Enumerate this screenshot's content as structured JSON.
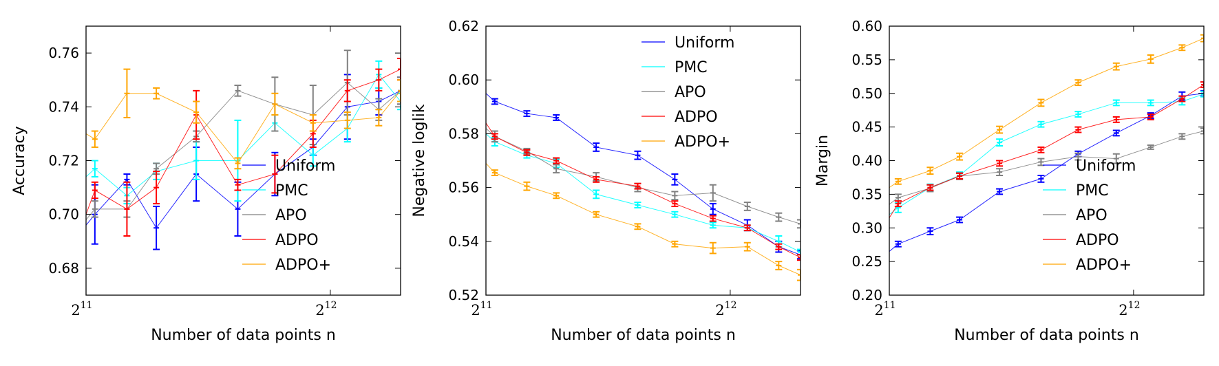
{
  "chart_data": [
    {
      "type": "line",
      "xlabel": "Number of data points n",
      "ylabel": "Accuracy",
      "xscale": "log2",
      "xlim": [
        2048,
        5000
      ],
      "ylim": [
        0.67,
        0.77
      ],
      "xticks": [
        {
          "value": 2048,
          "base": "2",
          "exp": "11"
        },
        {
          "value": 4096,
          "base": "2",
          "exp": "12"
        }
      ],
      "yticks": [
        0.68,
        0.7,
        0.72,
        0.74,
        0.76
      ],
      "ytick_labels": [
        "0.68",
        "0.70",
        "0.72",
        "0.74",
        "0.76"
      ],
      "legend_position": "lower-right",
      "x": [
        2048,
        2100,
        2300,
        2500,
        2800,
        3150,
        3500,
        3900,
        4300,
        4700,
        5000
      ],
      "series": [
        {
          "name": "Uniform",
          "color": "#0000ff",
          "values": [
            0.696,
            0.7,
            0.713,
            0.695,
            0.715,
            0.702,
            0.715,
            0.725,
            0.74,
            0.742,
            0.746
          ],
          "errors": [
            0.0,
            0.011,
            0.002,
            0.008,
            0.01,
            0.01,
            0.008,
            0.003,
            0.012,
            0.005,
            0.005
          ]
        },
        {
          "name": "PMC",
          "color": "#00ffff",
          "values": [
            0.714,
            0.717,
            0.707,
            0.716,
            0.72,
            0.72,
            0.734,
            0.722,
            0.732,
            0.752,
            0.742
          ],
          "errors": [
            0.0,
            0.003,
            0.003,
            0.003,
            0.007,
            0.015,
            0.003,
            0.004,
            0.005,
            0.005,
            0.003
          ]
        },
        {
          "name": "APO",
          "color": "#808080",
          "values": [
            0.698,
            0.702,
            0.702,
            0.717,
            0.729,
            0.746,
            0.741,
            0.737,
            0.749,
            0.739,
            0.746
          ],
          "errors": [
            0.0,
            0.003,
            0.003,
            0.002,
            0.002,
            0.002,
            0.01,
            0.011,
            0.012,
            0.004,
            0.005
          ]
        },
        {
          "name": "ADPO",
          "color": "#ff0000",
          "values": [
            0.7,
            0.709,
            0.702,
            0.71,
            0.737,
            0.711,
            0.715,
            0.73,
            0.746,
            0.75,
            0.754
          ],
          "errors": [
            0.0,
            0.003,
            0.01,
            0.006,
            0.009,
            0.002,
            0.007,
            0.005,
            0.004,
            0.004,
            0.004
          ]
        },
        {
          "name": "ADPO+",
          "color": "#ffa500",
          "values": [
            0.73,
            0.728,
            0.745,
            0.745,
            0.738,
            0.719,
            0.741,
            0.734,
            0.735,
            0.736,
            0.746
          ],
          "errors": [
            0.0,
            0.003,
            0.009,
            0.002,
            0.004,
            0.002,
            0.004,
            0.003,
            0.003,
            0.003,
            0.004
          ]
        }
      ]
    },
    {
      "type": "line",
      "xlabel": "Number of data points n",
      "ylabel": "Negative loglik",
      "xscale": "log2",
      "xlim": [
        2048,
        5000
      ],
      "ylim": [
        0.52,
        0.62
      ],
      "xticks": [
        {
          "value": 2048,
          "base": "2",
          "exp": "11"
        },
        {
          "value": 4096,
          "base": "2",
          "exp": "12"
        }
      ],
      "yticks": [
        0.52,
        0.54,
        0.56,
        0.58,
        0.6,
        0.62
      ],
      "ytick_labels": [
        "0.52",
        "0.54",
        "0.56",
        "0.58",
        "0.60",
        "0.62"
      ],
      "legend_position": "upper-right",
      "x": [
        2048,
        2100,
        2300,
        2500,
        2800,
        3150,
        3500,
        3900,
        4300,
        4700,
        5000
      ],
      "series": [
        {
          "name": "Uniform",
          "color": "#0000ff",
          "values": [
            0.595,
            0.592,
            0.5875,
            0.586,
            0.575,
            0.572,
            0.563,
            0.552,
            0.546,
            0.538,
            0.535
          ],
          "errors": [
            0.0,
            0.001,
            0.001,
            0.001,
            0.0015,
            0.0015,
            0.002,
            0.002,
            0.002,
            0.002,
            0.0015
          ]
        },
        {
          "name": "PMC",
          "color": "#00ffff",
          "values": [
            0.58,
            0.577,
            0.572,
            0.569,
            0.5575,
            0.5535,
            0.55,
            0.546,
            0.545,
            0.54,
            0.536
          ],
          "errors": [
            0.0,
            0.0015,
            0.001,
            0.0015,
            0.0015,
            0.001,
            0.001,
            0.001,
            0.001,
            0.002,
            0.001
          ]
        },
        {
          "name": "APO",
          "color": "#808080",
          "values": [
            0.582,
            0.579,
            0.5735,
            0.567,
            0.564,
            0.56,
            0.557,
            0.558,
            0.553,
            0.549,
            0.5465
          ],
          "errors": [
            0.0,
            0.002,
            0.001,
            0.0015,
            0.0015,
            0.0015,
            0.0015,
            0.003,
            0.0015,
            0.0015,
            0.0015
          ]
        },
        {
          "name": "ADPO",
          "color": "#ff0000",
          "values": [
            0.584,
            0.579,
            0.573,
            0.57,
            0.563,
            0.5605,
            0.554,
            0.5485,
            0.545,
            0.538,
            0.534
          ],
          "errors": [
            0.0,
            0.001,
            0.001,
            0.001,
            0.001,
            0.001,
            0.001,
            0.001,
            0.001,
            0.001,
            0.001
          ]
        },
        {
          "name": "ADPO+",
          "color": "#ffa500",
          "values": [
            0.569,
            0.5655,
            0.5605,
            0.557,
            0.55,
            0.5455,
            0.539,
            0.5375,
            0.538,
            0.531,
            0.5275
          ],
          "errors": [
            0.0,
            0.001,
            0.0015,
            0.001,
            0.001,
            0.001,
            0.001,
            0.002,
            0.0015,
            0.0015,
            0.002
          ]
        }
      ]
    },
    {
      "type": "line",
      "xlabel": "Number of data points n",
      "ylabel": "Margin",
      "xscale": "log2",
      "xlim": [
        2048,
        5000
      ],
      "ylim": [
        0.2,
        0.6
      ],
      "xticks": [
        {
          "value": 2048,
          "base": "2",
          "exp": "11"
        },
        {
          "value": 4096,
          "base": "2",
          "exp": "12"
        }
      ],
      "yticks": [
        0.2,
        0.25,
        0.3,
        0.35,
        0.4,
        0.45,
        0.5,
        0.55,
        0.6
      ],
      "ytick_labels": [
        "0.20",
        "0.25",
        "0.30",
        "0.35",
        "0.40",
        "0.45",
        "0.50",
        "0.55",
        "0.60"
      ],
      "legend_position": "lower-right",
      "x": [
        2048,
        2100,
        2300,
        2500,
        2800,
        3150,
        3500,
        3900,
        4300,
        4700,
        5000
      ],
      "series": [
        {
          "name": "Uniform",
          "color": "#0000ff",
          "values": [
            0.265,
            0.276,
            0.295,
            0.312,
            0.354,
            0.373,
            0.41,
            0.441,
            0.467,
            0.496,
            0.5
          ],
          "errors": [
            0.0,
            0.004,
            0.005,
            0.004,
            0.004,
            0.005,
            0.004,
            0.004,
            0.004,
            0.006,
            0.004
          ]
        },
        {
          "name": "PMC",
          "color": "#00ffff",
          "values": [
            0.32,
            0.33,
            0.36,
            0.378,
            0.427,
            0.454,
            0.469,
            0.486,
            0.486,
            0.488,
            0.499
          ],
          "errors": [
            0.0,
            0.007,
            0.005,
            0.005,
            0.005,
            0.004,
            0.004,
            0.004,
            0.004,
            0.005,
            0.004
          ]
        },
        {
          "name": "APO",
          "color": "#808080",
          "values": [
            0.335,
            0.345,
            0.359,
            0.377,
            0.383,
            0.398,
            0.406,
            0.403,
            0.42,
            0.436,
            0.444
          ],
          "errors": [
            0.0,
            0.005,
            0.005,
            0.005,
            0.005,
            0.005,
            0.005,
            0.007,
            0.003,
            0.004,
            0.004
          ]
        },
        {
          "name": "ADPO",
          "color": "#ff0000",
          "values": [
            0.315,
            0.336,
            0.36,
            0.377,
            0.396,
            0.416,
            0.446,
            0.461,
            0.465,
            0.492,
            0.513
          ],
          "errors": [
            0.0,
            0.004,
            0.004,
            0.004,
            0.004,
            0.004,
            0.004,
            0.004,
            0.004,
            0.004,
            0.004
          ]
        },
        {
          "name": "ADPO+",
          "color": "#ffa500",
          "values": [
            0.36,
            0.369,
            0.385,
            0.406,
            0.446,
            0.486,
            0.516,
            0.54,
            0.551,
            0.568,
            0.582
          ],
          "errors": [
            0.0,
            0.004,
            0.005,
            0.005,
            0.005,
            0.005,
            0.004,
            0.005,
            0.006,
            0.004,
            0.005
          ]
        }
      ]
    }
  ]
}
